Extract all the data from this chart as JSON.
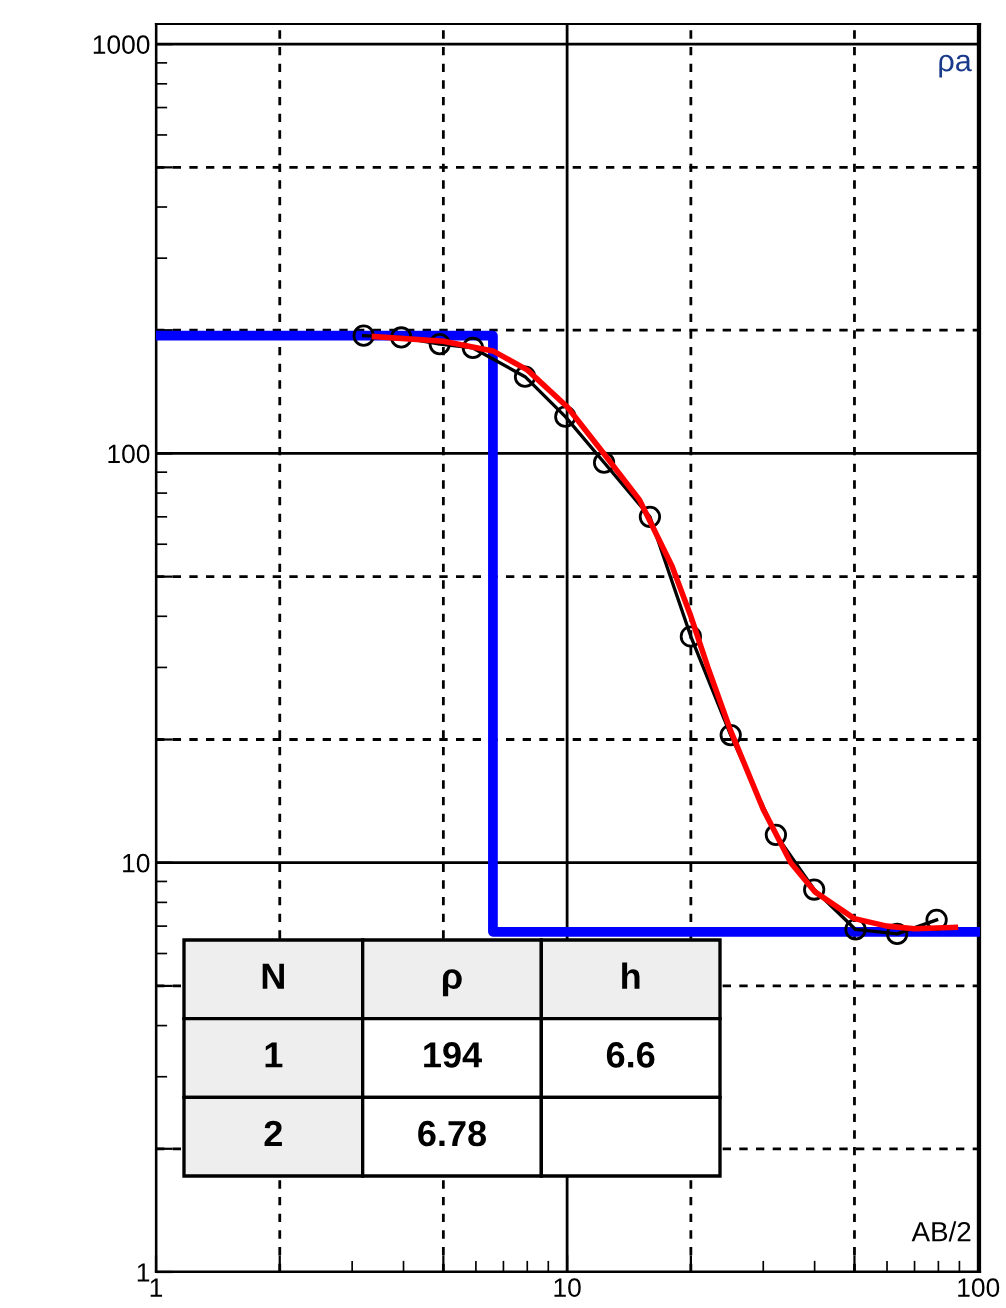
{
  "chart_data": {
    "type": "line",
    "xlabel": "AB/2",
    "ylabel": "ρa",
    "log": "xy",
    "xlim": [
      1,
      101
    ],
    "ylim": [
      1,
      1120
    ],
    "xticks": [
      1,
      {
        "value": 2,
        "label": null
      },
      {
        "value": 5,
        "label": null
      },
      10,
      {
        "value": 20,
        "label": null
      },
      {
        "value": 50,
        "label": null
      },
      100
    ],
    "yticks": [
      1,
      {
        "value": 2,
        "label": null
      },
      {
        "value": 5,
        "label": null
      },
      10,
      {
        "value": 20,
        "label": null
      },
      {
        "value": 50,
        "label": null
      },
      100,
      {
        "value": 200,
        "label": null
      },
      {
        "value": 500,
        "label": null
      },
      1000
    ],
    "grid": true,
    "legend": false,
    "series": [
      {
        "color": "#0000ff",
        "marker": "none",
        "x": [
          1,
          6.6,
          6.6,
          101
        ],
        "values": [
          194,
          194,
          6.78,
          6.78
        ]
      },
      {
        "color": "#000000",
        "marker": "circle",
        "x": [
          3.2,
          3.95,
          4.9,
          5.9,
          7.9,
          9.9,
          12.3,
          15.9,
          20.0,
          25.0,
          32.2,
          39.9,
          50.3,
          63.5,
          79.2
        ],
        "values": [
          194,
          192,
          185,
          181,
          154,
          123,
          95,
          70,
          35.7,
          20.5,
          11.7,
          8.6,
          6.87,
          6.7,
          7.25
        ]
      },
      {
        "color": "#ff0000",
        "marker": "none",
        "x": [
          3.4,
          5,
          6.6,
          8,
          10,
          12,
          15,
          18,
          20,
          22,
          25,
          30,
          35,
          40,
          50,
          60,
          70,
          88
        ],
        "values": [
          193,
          188,
          178,
          160,
          130,
          103,
          77,
          53,
          40,
          30,
          21,
          13.5,
          10,
          8.5,
          7.3,
          7.0,
          6.9,
          6.95
        ]
      }
    ],
    "annotations": [
      "N",
      "ρ",
      "h",
      "1",
      "194",
      "6.6",
      "2",
      "6.78"
    ]
  }
}
